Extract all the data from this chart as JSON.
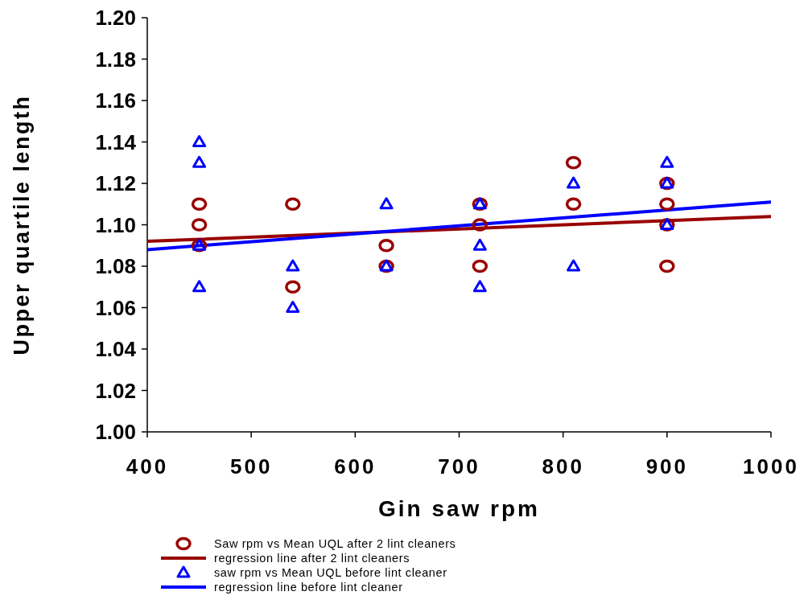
{
  "chart_data": {
    "type": "scatter",
    "xlabel": "Gin saw rpm",
    "ylabel": "Upper quartile length",
    "xlim": [
      400,
      1000
    ],
    "xticks": [
      400,
      500,
      600,
      700,
      800,
      900,
      1000
    ],
    "ylim": [
      1.0,
      1.2
    ],
    "yticks": [
      {
        "value": 1,
        "label": "1.00"
      },
      1.02,
      1.04,
      1.06,
      1.08,
      {
        "value": 1.1,
        "label": "1.10"
      },
      1.12,
      1.14,
      1.16,
      1.18,
      {
        "value": 1.2,
        "label": "1.20"
      }
    ],
    "grid": false,
    "legend": "bottom",
    "series": [
      {
        "name": "Saw rpm vs Mean UQL after 2 lint cleaners",
        "marker": "circle",
        "color": "#990000",
        "x": [
          450,
          450,
          450,
          540,
          540,
          630,
          630,
          720,
          720,
          720,
          810,
          810,
          900,
          900,
          900,
          900
        ],
        "values": [
          1.11,
          1.1,
          1.09,
          1.11,
          1.07,
          1.09,
          1.08,
          1.11,
          1.1,
          1.08,
          1.13,
          1.11,
          1.12,
          1.11,
          1.1,
          1.08
        ]
      },
      {
        "name": "regression line after 2 lint cleaners",
        "type": "line",
        "marker": "none",
        "color": "#990000",
        "x": [
          400,
          1000
        ],
        "values": [
          1.092,
          1.104
        ]
      },
      {
        "name": "saw rpm vs Mean UQL before lint cleaner",
        "marker": "triangle",
        "color": "#0000ff",
        "x": [
          450,
          450,
          450,
          450,
          540,
          540,
          630,
          630,
          720,
          720,
          720,
          810,
          810,
          900,
          900,
          900
        ],
        "values": [
          1.14,
          1.13,
          1.09,
          1.07,
          1.08,
          1.06,
          1.11,
          1.08,
          1.11,
          1.09,
          1.07,
          1.12,
          1.08,
          1.13,
          1.12,
          1.1
        ]
      },
      {
        "name": "regression line before lint cleaner",
        "type": "line",
        "marker": "none",
        "color": "#0000ff",
        "x": [
          400,
          1000
        ],
        "values": [
          1.088,
          1.111
        ]
      }
    ]
  }
}
